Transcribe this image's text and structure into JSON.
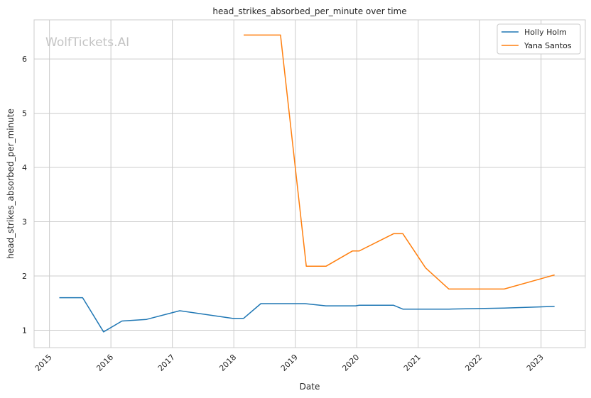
{
  "chart_data": {
    "type": "line",
    "title": "head_strikes_absorbed_per_minute over time",
    "xlabel": "Date",
    "ylabel": "head_strikes_absorbed_per_minute",
    "watermark": "WolfTickets.AI",
    "x_ticks": [
      "2015",
      "2016",
      "2017",
      "2018",
      "2019",
      "2020",
      "2021",
      "2022",
      "2023"
    ],
    "y_ticks": [
      1,
      2,
      3,
      4,
      5,
      6
    ],
    "xlim": [
      2014.75,
      2023.72
    ],
    "ylim": [
      0.68,
      6.72
    ],
    "grid": true,
    "legend_position": "top-right",
    "series": [
      {
        "name": "Holly Holm",
        "color": "#1f77b4",
        "points": [
          [
            2015.16,
            1.6
          ],
          [
            2015.54,
            1.6
          ],
          [
            2015.88,
            0.97
          ],
          [
            2016.18,
            1.17
          ],
          [
            2016.58,
            1.2
          ],
          [
            2017.12,
            1.36
          ],
          [
            2017.98,
            1.22
          ],
          [
            2018.16,
            1.22
          ],
          [
            2018.44,
            1.49
          ],
          [
            2019.16,
            1.49
          ],
          [
            2019.5,
            1.45
          ],
          [
            2019.98,
            1.45
          ],
          [
            2020.04,
            1.46
          ],
          [
            2020.6,
            1.46
          ],
          [
            2020.75,
            1.39
          ],
          [
            2021.5,
            1.39
          ],
          [
            2022.4,
            1.41
          ],
          [
            2023.22,
            1.44
          ]
        ]
      },
      {
        "name": "Yana Santos",
        "color": "#ff7f0e",
        "points": [
          [
            2018.16,
            6.44
          ],
          [
            2018.76,
            6.44
          ],
          [
            2019.18,
            2.18
          ],
          [
            2019.5,
            2.18
          ],
          [
            2019.93,
            2.46
          ],
          [
            2020.04,
            2.46
          ],
          [
            2020.6,
            2.78
          ],
          [
            2020.75,
            2.78
          ],
          [
            2021.12,
            2.15
          ],
          [
            2021.5,
            1.76
          ],
          [
            2022.4,
            1.76
          ],
          [
            2023.22,
            2.02
          ]
        ]
      }
    ]
  }
}
